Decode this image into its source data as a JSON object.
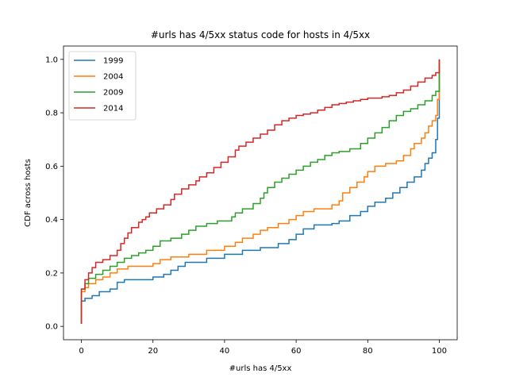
{
  "chart_data": {
    "type": "line",
    "step": true,
    "title": "#urls has 4/5xx status code for hosts in 4/5xx",
    "xlabel": "#urls has 4/5xx",
    "ylabel": "CDF across hosts",
    "xlim": [
      -5,
      105
    ],
    "ylim": [
      -0.05,
      1.05
    ],
    "xticks": [
      0,
      20,
      40,
      60,
      80,
      100
    ],
    "yticks": [
      0.0,
      0.2,
      0.4,
      0.6,
      0.8,
      1.0
    ],
    "xtick_labels": [
      "0",
      "20",
      "40",
      "60",
      "80",
      "100"
    ],
    "ytick_labels": [
      "0.0",
      "0.2",
      "0.4",
      "0.6",
      "0.8",
      "1.0"
    ],
    "grid": false,
    "legend": "top-left",
    "series": [
      {
        "name": "1999",
        "color": "#1f77b4",
        "points": [
          [
            0,
            0.01
          ],
          [
            0,
            0.095
          ],
          [
            1,
            0.105
          ],
          [
            3,
            0.115
          ],
          [
            5,
            0.13
          ],
          [
            8,
            0.14
          ],
          [
            10,
            0.165
          ],
          [
            12,
            0.175
          ],
          [
            20,
            0.185
          ],
          [
            23,
            0.195
          ],
          [
            25,
            0.21
          ],
          [
            27,
            0.225
          ],
          [
            29,
            0.24
          ],
          [
            35,
            0.255
          ],
          [
            40,
            0.27
          ],
          [
            45,
            0.285
          ],
          [
            50,
            0.295
          ],
          [
            55,
            0.31
          ],
          [
            58,
            0.325
          ],
          [
            60,
            0.345
          ],
          [
            62,
            0.365
          ],
          [
            65,
            0.38
          ],
          [
            70,
            0.385
          ],
          [
            72,
            0.395
          ],
          [
            75,
            0.415
          ],
          [
            78,
            0.43
          ],
          [
            80,
            0.45
          ],
          [
            82,
            0.465
          ],
          [
            85,
            0.48
          ],
          [
            87,
            0.5
          ],
          [
            89,
            0.52
          ],
          [
            91,
            0.54
          ],
          [
            93,
            0.56
          ],
          [
            95,
            0.585
          ],
          [
            96,
            0.61
          ],
          [
            97,
            0.63
          ],
          [
            98,
            0.65
          ],
          [
            99,
            0.7
          ],
          [
            99.5,
            0.78
          ],
          [
            100,
            0.8
          ],
          [
            100,
            1.0
          ]
        ]
      },
      {
        "name": "2004",
        "color": "#ff7f0e",
        "points": [
          [
            0,
            0.01
          ],
          [
            0,
            0.13
          ],
          [
            1,
            0.145
          ],
          [
            2,
            0.16
          ],
          [
            4,
            0.175
          ],
          [
            6,
            0.185
          ],
          [
            8,
            0.2
          ],
          [
            10,
            0.215
          ],
          [
            13,
            0.225
          ],
          [
            20,
            0.235
          ],
          [
            22,
            0.25
          ],
          [
            25,
            0.26
          ],
          [
            30,
            0.27
          ],
          [
            35,
            0.285
          ],
          [
            40,
            0.3
          ],
          [
            43,
            0.315
          ],
          [
            45,
            0.33
          ],
          [
            48,
            0.345
          ],
          [
            50,
            0.36
          ],
          [
            52,
            0.37
          ],
          [
            55,
            0.385
          ],
          [
            58,
            0.4
          ],
          [
            60,
            0.415
          ],
          [
            62,
            0.43
          ],
          [
            65,
            0.44
          ],
          [
            70,
            0.455
          ],
          [
            72,
            0.47
          ],
          [
            73,
            0.5
          ],
          [
            75,
            0.52
          ],
          [
            77,
            0.54
          ],
          [
            79,
            0.56
          ],
          [
            80,
            0.58
          ],
          [
            82,
            0.6
          ],
          [
            85,
            0.61
          ],
          [
            88,
            0.62
          ],
          [
            90,
            0.64
          ],
          [
            92,
            0.665
          ],
          [
            93,
            0.685
          ],
          [
            95,
            0.705
          ],
          [
            96,
            0.725
          ],
          [
            97,
            0.75
          ],
          [
            98,
            0.77
          ],
          [
            99,
            0.79
          ],
          [
            99.5,
            0.85
          ],
          [
            100,
            0.87
          ],
          [
            100,
            1.0
          ]
        ]
      },
      {
        "name": "2009",
        "color": "#2ca02c",
        "points": [
          [
            0,
            0.01
          ],
          [
            0,
            0.14
          ],
          [
            1,
            0.16
          ],
          [
            2,
            0.18
          ],
          [
            4,
            0.195
          ],
          [
            6,
            0.21
          ],
          [
            8,
            0.225
          ],
          [
            10,
            0.24
          ],
          [
            12,
            0.255
          ],
          [
            14,
            0.265
          ],
          [
            16,
            0.275
          ],
          [
            18,
            0.285
          ],
          [
            20,
            0.3
          ],
          [
            22,
            0.32
          ],
          [
            25,
            0.33
          ],
          [
            28,
            0.345
          ],
          [
            30,
            0.36
          ],
          [
            32,
            0.375
          ],
          [
            35,
            0.385
          ],
          [
            38,
            0.395
          ],
          [
            42,
            0.41
          ],
          [
            43,
            0.425
          ],
          [
            45,
            0.44
          ],
          [
            48,
            0.46
          ],
          [
            50,
            0.48
          ],
          [
            51,
            0.5
          ],
          [
            52,
            0.52
          ],
          [
            54,
            0.54
          ],
          [
            56,
            0.555
          ],
          [
            58,
            0.57
          ],
          [
            60,
            0.585
          ],
          [
            62,
            0.6
          ],
          [
            64,
            0.615
          ],
          [
            66,
            0.625
          ],
          [
            68,
            0.64
          ],
          [
            70,
            0.65
          ],
          [
            72,
            0.655
          ],
          [
            75,
            0.665
          ],
          [
            78,
            0.685
          ],
          [
            80,
            0.705
          ],
          [
            82,
            0.725
          ],
          [
            84,
            0.745
          ],
          [
            86,
            0.77
          ],
          [
            88,
            0.79
          ],
          [
            90,
            0.805
          ],
          [
            92,
            0.815
          ],
          [
            94,
            0.83
          ],
          [
            96,
            0.845
          ],
          [
            98,
            0.865
          ],
          [
            99,
            0.88
          ],
          [
            100,
            0.9
          ],
          [
            100,
            1.0
          ]
        ]
      },
      {
        "name": "2014",
        "color": "#d62728",
        "points": [
          [
            0,
            0.01
          ],
          [
            0,
            0.14
          ],
          [
            1,
            0.175
          ],
          [
            2,
            0.2
          ],
          [
            3,
            0.22
          ],
          [
            4,
            0.24
          ],
          [
            6,
            0.25
          ],
          [
            8,
            0.265
          ],
          [
            10,
            0.285
          ],
          [
            11,
            0.31
          ],
          [
            12,
            0.33
          ],
          [
            13,
            0.35
          ],
          [
            14,
            0.37
          ],
          [
            16,
            0.39
          ],
          [
            17,
            0.4
          ],
          [
            18,
            0.41
          ],
          [
            19,
            0.425
          ],
          [
            21,
            0.44
          ],
          [
            23,
            0.455
          ],
          [
            25,
            0.475
          ],
          [
            26,
            0.495
          ],
          [
            28,
            0.515
          ],
          [
            30,
            0.53
          ],
          [
            32,
            0.545
          ],
          [
            33,
            0.56
          ],
          [
            35,
            0.575
          ],
          [
            37,
            0.595
          ],
          [
            39,
            0.615
          ],
          [
            41,
            0.635
          ],
          [
            43,
            0.66
          ],
          [
            44,
            0.675
          ],
          [
            46,
            0.69
          ],
          [
            48,
            0.705
          ],
          [
            50,
            0.72
          ],
          [
            52,
            0.735
          ],
          [
            54,
            0.755
          ],
          [
            56,
            0.77
          ],
          [
            58,
            0.78
          ],
          [
            60,
            0.79
          ],
          [
            62,
            0.795
          ],
          [
            64,
            0.8
          ],
          [
            66,
            0.81
          ],
          [
            68,
            0.82
          ],
          [
            70,
            0.83
          ],
          [
            72,
            0.835
          ],
          [
            74,
            0.84
          ],
          [
            76,
            0.845
          ],
          [
            78,
            0.85
          ],
          [
            80,
            0.855
          ],
          [
            84,
            0.86
          ],
          [
            86,
            0.865
          ],
          [
            88,
            0.875
          ],
          [
            90,
            0.885
          ],
          [
            92,
            0.9
          ],
          [
            94,
            0.915
          ],
          [
            96,
            0.93
          ],
          [
            98,
            0.94
          ],
          [
            99,
            0.95
          ],
          [
            100,
            0.955
          ],
          [
            100,
            1.0
          ]
        ]
      }
    ]
  }
}
